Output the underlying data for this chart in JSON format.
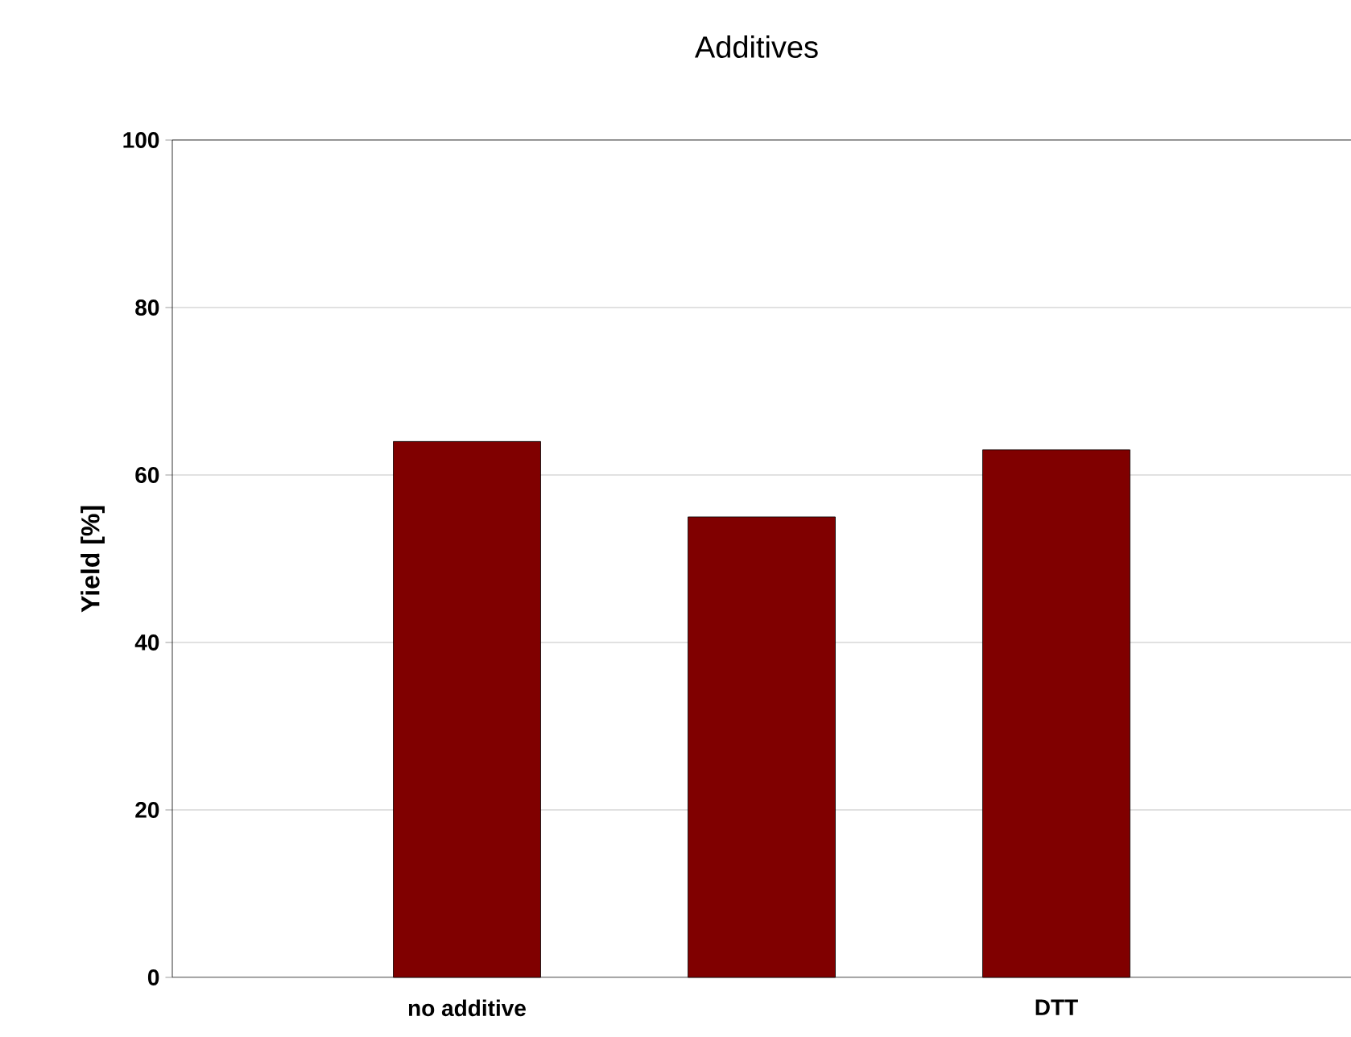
{
  "chart_data": {
    "type": "bar",
    "title": "Additives",
    "ylabel": "Yield [%]",
    "categories": [
      "no additive",
      null,
      "DTT"
    ],
    "values": [
      64,
      55,
      63
    ],
    "color": "#800000",
    "ylim": [
      0,
      100
    ],
    "yticks": [
      0,
      20,
      40,
      60,
      80,
      100
    ],
    "grid": "y"
  }
}
